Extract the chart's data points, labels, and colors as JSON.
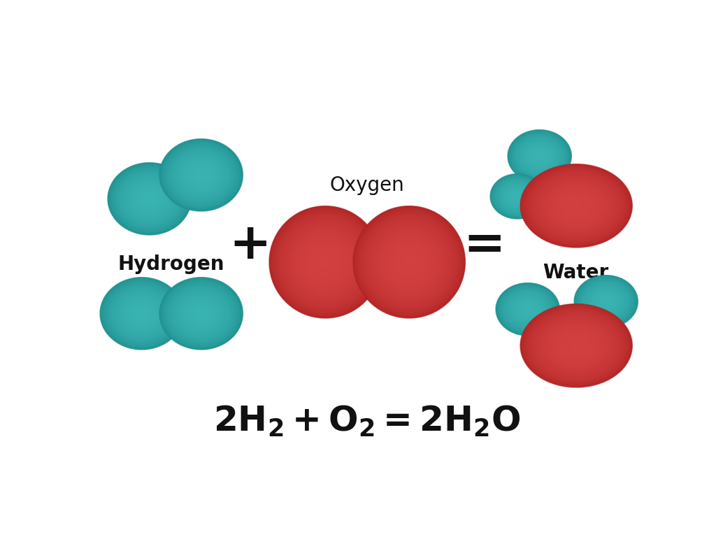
{
  "background_color": "#ffffff",
  "h_color": "#4ECECE",
  "h_light": "#A8EEEE",
  "h_dark": "#1A8888",
  "o_color": "#EE5555",
  "o_light": "#FFAAAA",
  "o_dark": "#AA2020",
  "label_hydrogen": "Hydrogen",
  "label_oxygen": "Oxygen",
  "label_water": "Water",
  "text_color": "#111111",
  "label_fontsize": 20,
  "eq_fontsize": 36,
  "oxygen_not_bold": true
}
